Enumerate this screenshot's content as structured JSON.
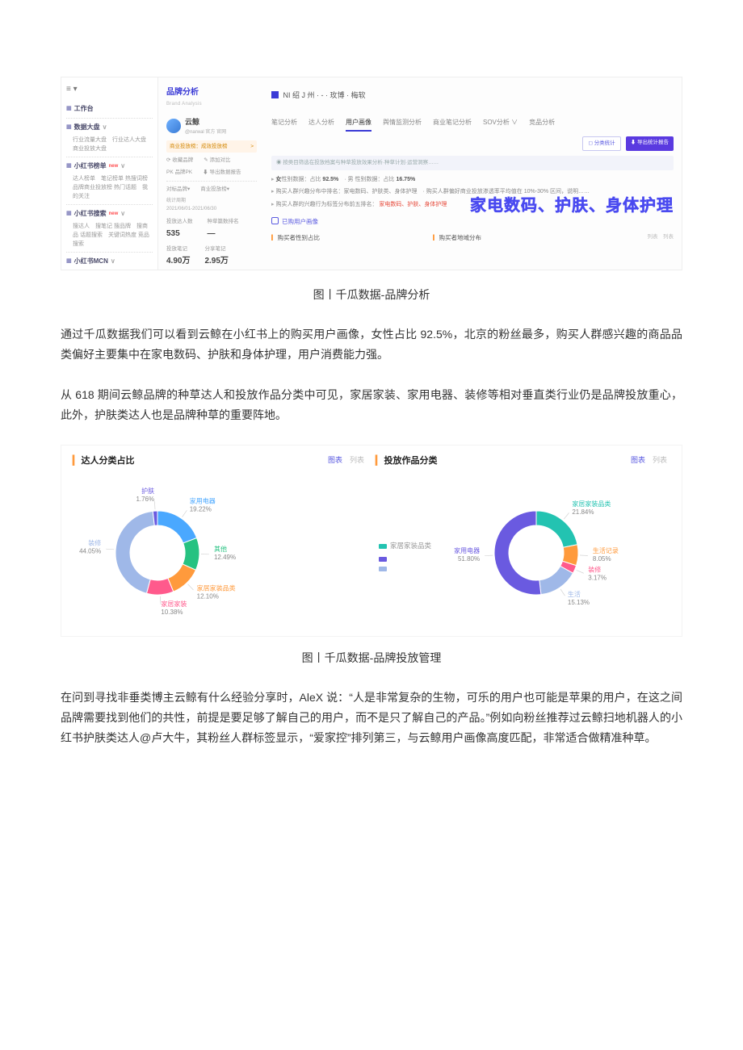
{
  "caption1": "图丨千瓜数据-品牌分析",
  "caption2": "图丨千瓜数据-品牌投放管理",
  "para1": "通过千瓜数据我们可以看到云鲸在小红书上的购买用户画像，女性占比 92.5%，北京的粉丝最多，购买人群感兴趣的商品品类偏好主要集中在家电数码、护肤和身体护理，用户消费能力强。",
  "para2": "从 618 期间云鲸品牌的种草达人和投放作品分类中可见，家居家装、家用电器、装修等相对垂直类行业仍是品牌投放重心，此外，护肤类达人也是品牌种草的重要阵地。",
  "para3": "在问到寻找非垂类博主云鲸有什么经验分享时，AleX 说：“人是非常复杂的生物，可乐的用户也可能是苹果的用户，在这之间品牌需要找到他们的共性，前提是要足够了解自己的用户，而不是只了解自己的产品。”例如向粉丝推荐过云鲸扫地机器人的小红书护肤类达人@卢大牛，其粉丝人群标签显示，“爱家控”排列第三，与云鲸用户画像高度匹配，非常适合做精准种草。",
  "dash": {
    "sidebar": {
      "g1": {
        "head": "工作台"
      },
      "g2": {
        "head": "数据大盘",
        "items": "行业流量大盘　行业达人大盘\n商业投放大盘"
      },
      "g3": {
        "head": "小红书榜单",
        "items": "达人榜单　笔记榜单\n热搜词榜　品牌商业投放榜\n热门话题　我的关注",
        "new": "new"
      },
      "g4": {
        "head": "小红书搜索",
        "items": "搜达人　搜笔记\n搜品牌　搜商品\n话题搜索　关键词热度\n竞品搜索",
        "new": "new"
      },
      "g5": {
        "head": "小红书MCN"
      },
      "g6": {
        "head": "小红书直播"
      },
      "g7": {
        "head": "品牌投放分析"
      }
    },
    "panelTitle": {
      "zh": "品牌分析",
      "en": "Brand Analysis"
    },
    "crumb": "NI 绍 J 州 · - · 玫博 · 梅软",
    "brand": {
      "name": "云鲸",
      "sub": "@narwal 官方  官网"
    },
    "pill": {
      "text": "商业投放榜：成效投放榜",
      "arrow": ">"
    },
    "lk1": "⟳ 收藏品牌　　✎ 添加对比",
    "lk2": "PK 品牌PK　　⬇ 导出数据报告",
    "lk3": "对标品牌▾　　商业投放榜▾",
    "period": "统计周期\n2021/06/01-2021/06/30",
    "stat1": {
      "label": "投放达人数",
      "value": "535",
      "label2": "种草篇数排名",
      "value2": "—"
    },
    "stat2": {
      "label": "投放笔记",
      "value": "4.90万",
      "label2": "分享笔记",
      "value2": "2.95万"
    },
    "tabs": [
      "笔记分析",
      "达人分析",
      "用户画像",
      "舆情监测分析",
      "商业笔记分析",
      "SOV分析 ∨",
      "竞品分析"
    ],
    "activeTab": "用户画像",
    "btn1": "◻ 分类统计",
    "btn2": "⬇ 导出统计报告",
    "hint": "◉  按类目筛选在投放档案与种草投放效果分析·种草计划·运营洞察……",
    "bul1_a": "女",
    "bul1_b": "性别数据：占比 ",
    "bul1_v": "92.5%",
    "bul1_c": "　· 男 性别数据：占比 ",
    "bul1_v2": "16.75%",
    "bul2": "购买人群兴趣分布中排名：家电数码、护肤类、身体护理　· 购买人群偏好商业投放渗透率平均值在 10%-30% 区间，说明……",
    "bul3": "购买人群的兴趣行为标签分布前五排名：",
    "bul3tags": "家电数码、护肤、身体护理",
    "bigtag": "家电数码、护肤、身体护理",
    "sect": "已购用户画像",
    "col1": "购买者性别占比",
    "col2": "购买者地域分布",
    "rt": "列表　列表"
  },
  "donuts": {
    "left": {
      "title": "达人分类占比",
      "tabs": [
        "图表",
        "列表"
      ],
      "series": [
        {
          "label": "家用电器",
          "value": 19.22,
          "labelColor": "#4aa8ff"
        },
        {
          "label": "其他",
          "value": 12.49,
          "labelColor": "#26c281"
        },
        {
          "label": "家居家装品类",
          "value": 12.1,
          "labelColor": "#ff9a3c"
        },
        {
          "label": "家居家装",
          "value": 10.38,
          "labelColor": "#ff5a8c"
        },
        {
          "label": "装修",
          "value": 44.05,
          "labelColor": "#9fb8e8"
        },
        {
          "label": "护肤",
          "value": 1.76,
          "labelColor": "#6a5ae0"
        }
      ],
      "colors": [
        "#4aa8ff",
        "#26c281",
        "#ff9a3c",
        "#ff5a8c",
        "#9fb8e8",
        "#6a5ae0"
      ]
    },
    "right": {
      "title": "投放作品分类",
      "tabs": [
        "图表",
        "列表"
      ],
      "legend": [
        {
          "label": "家居家装品类",
          "color": "#23c3b1"
        },
        {
          "label": "",
          "color": "#6a5ae0"
        },
        {
          "label": "",
          "color": "#9fb8e8"
        }
      ],
      "series": [
        {
          "label": "家居家装品类",
          "value": 21.84,
          "labelColor": "#23c3b1"
        },
        {
          "label": "生活记录",
          "value": 8.05,
          "labelColor": "#ff9a3c"
        },
        {
          "label": "装修",
          "value": 3.17,
          "labelColor": "#ff5a8c"
        },
        {
          "label": "生活",
          "value": 15.13,
          "labelColor": "#9fb8e8"
        },
        {
          "label": "家用电器",
          "value": 51.8,
          "labelColor": "#6a5ae0"
        }
      ],
      "colors": [
        "#23c3b1",
        "#ff9a3c",
        "#ff5a8c",
        "#9fb8e8",
        "#6a5ae0"
      ]
    }
  }
}
